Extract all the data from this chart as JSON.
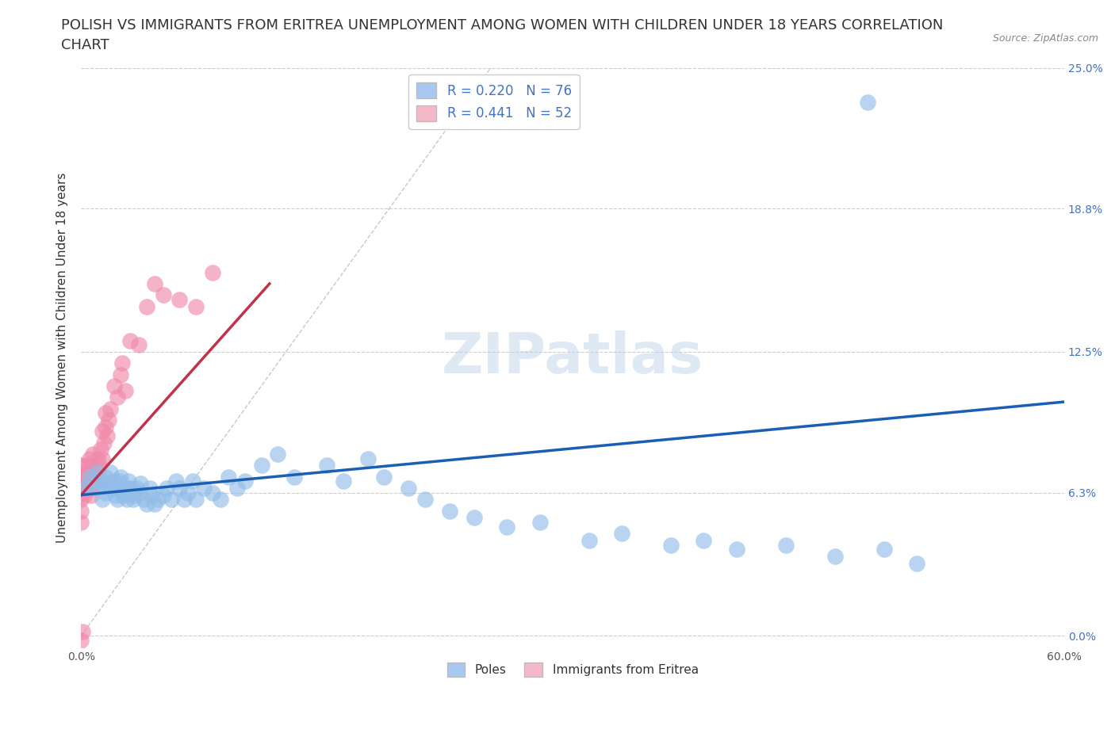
{
  "title_line1": "POLISH VS IMMIGRANTS FROM ERITREA UNEMPLOYMENT AMONG WOMEN WITH CHILDREN UNDER 18 YEARS CORRELATION",
  "title_line2": "CHART",
  "source_text": "Source: ZipAtlas.com",
  "ylabel": "Unemployment Among Women with Children Under 18 years",
  "xlim": [
    0.0,
    0.6
  ],
  "ylim": [
    -0.005,
    0.25
  ],
  "x_ticks": [
    0.0,
    0.1,
    0.2,
    0.3,
    0.4,
    0.5,
    0.6
  ],
  "x_tick_labels": [
    "0.0%",
    "",
    "",
    "",
    "",
    "",
    "60.0%"
  ],
  "y_tick_labels_right": [
    "0.0%",
    "6.3%",
    "12.5%",
    "18.8%",
    "25.0%"
  ],
  "y_ticks_right": [
    0.0,
    0.063,
    0.125,
    0.188,
    0.25
  ],
  "legend_entries": [
    {
      "label": "R = 0.220   N = 76",
      "color": "#a8c8f0"
    },
    {
      "label": "R = 0.441   N = 52",
      "color": "#f4b8c8"
    }
  ],
  "bottom_legend": [
    {
      "label": "Poles",
      "color": "#a8c8f0"
    },
    {
      "label": "Immigrants from Eritrea",
      "color": "#f4b8c8"
    }
  ],
  "poles_line_x": [
    0.0,
    0.6
  ],
  "poles_line_y": [
    0.062,
    0.103
  ],
  "eritrea_line_x": [
    0.0,
    0.115
  ],
  "eritrea_line_y": [
    0.062,
    0.155
  ],
  "poles_color": "#92bde8",
  "eritrea_color": "#f08aaa",
  "poles_line_color": "#1a5fb4",
  "eritrea_line_color": "#c0334d",
  "grid_color": "#cccccc",
  "background_color": "#ffffff",
  "title_fontsize": 13,
  "axis_label_fontsize": 11,
  "tick_fontsize": 10,
  "poles_x": [
    0.003,
    0.005,
    0.008,
    0.01,
    0.01,
    0.012,
    0.013,
    0.015,
    0.015,
    0.016,
    0.018,
    0.018,
    0.02,
    0.02,
    0.021,
    0.022,
    0.022,
    0.023,
    0.024,
    0.025,
    0.026,
    0.027,
    0.028,
    0.028,
    0.029,
    0.03,
    0.031,
    0.032,
    0.033,
    0.034,
    0.035,
    0.036,
    0.038,
    0.04,
    0.042,
    0.043,
    0.045,
    0.047,
    0.05,
    0.052,
    0.055,
    0.058,
    0.06,
    0.063,
    0.065,
    0.068,
    0.07,
    0.075,
    0.08,
    0.085,
    0.09,
    0.095,
    0.1,
    0.11,
    0.12,
    0.13,
    0.15,
    0.16,
    0.175,
    0.185,
    0.2,
    0.21,
    0.225,
    0.24,
    0.26,
    0.28,
    0.31,
    0.33,
    0.36,
    0.38,
    0.4,
    0.43,
    0.46,
    0.49,
    0.51,
    0.48
  ],
  "poles_y": [
    0.065,
    0.07,
    0.068,
    0.072,
    0.065,
    0.068,
    0.06,
    0.063,
    0.07,
    0.067,
    0.065,
    0.072,
    0.066,
    0.068,
    0.062,
    0.06,
    0.065,
    0.068,
    0.07,
    0.064,
    0.062,
    0.063,
    0.065,
    0.06,
    0.068,
    0.065,
    0.063,
    0.06,
    0.062,
    0.065,
    0.063,
    0.067,
    0.06,
    0.058,
    0.065,
    0.062,
    0.058,
    0.06,
    0.062,
    0.065,
    0.06,
    0.068,
    0.065,
    0.06,
    0.063,
    0.068,
    0.06,
    0.065,
    0.063,
    0.06,
    0.07,
    0.065,
    0.068,
    0.075,
    0.08,
    0.07,
    0.075,
    0.068,
    0.078,
    0.07,
    0.065,
    0.06,
    0.055,
    0.052,
    0.048,
    0.05,
    0.042,
    0.045,
    0.04,
    0.042,
    0.038,
    0.04,
    0.035,
    0.038,
    0.032,
    0.235
  ],
  "eritrea_x": [
    0.0,
    0.0,
    0.0,
    0.0,
    0.0,
    0.0,
    0.001,
    0.001,
    0.002,
    0.002,
    0.002,
    0.003,
    0.003,
    0.003,
    0.004,
    0.004,
    0.005,
    0.005,
    0.005,
    0.006,
    0.006,
    0.007,
    0.007,
    0.008,
    0.009,
    0.01,
    0.01,
    0.011,
    0.012,
    0.013,
    0.013,
    0.014,
    0.015,
    0.015,
    0.016,
    0.017,
    0.018,
    0.02,
    0.022,
    0.024,
    0.025,
    0.027,
    0.03,
    0.035,
    0.04,
    0.045,
    0.05,
    0.06,
    0.07,
    0.08,
    0.0,
    0.001
  ],
  "eritrea_y": [
    0.06,
    0.065,
    0.07,
    0.075,
    0.055,
    0.05,
    0.063,
    0.07,
    0.062,
    0.068,
    0.072,
    0.065,
    0.07,
    0.075,
    0.068,
    0.072,
    0.065,
    0.07,
    0.078,
    0.062,
    0.075,
    0.065,
    0.08,
    0.07,
    0.072,
    0.068,
    0.078,
    0.075,
    0.082,
    0.078,
    0.09,
    0.085,
    0.092,
    0.098,
    0.088,
    0.095,
    0.1,
    0.11,
    0.105,
    0.115,
    0.12,
    0.108,
    0.13,
    0.128,
    0.145,
    0.155,
    0.15,
    0.148,
    0.145,
    0.16,
    -0.002,
    0.002
  ]
}
